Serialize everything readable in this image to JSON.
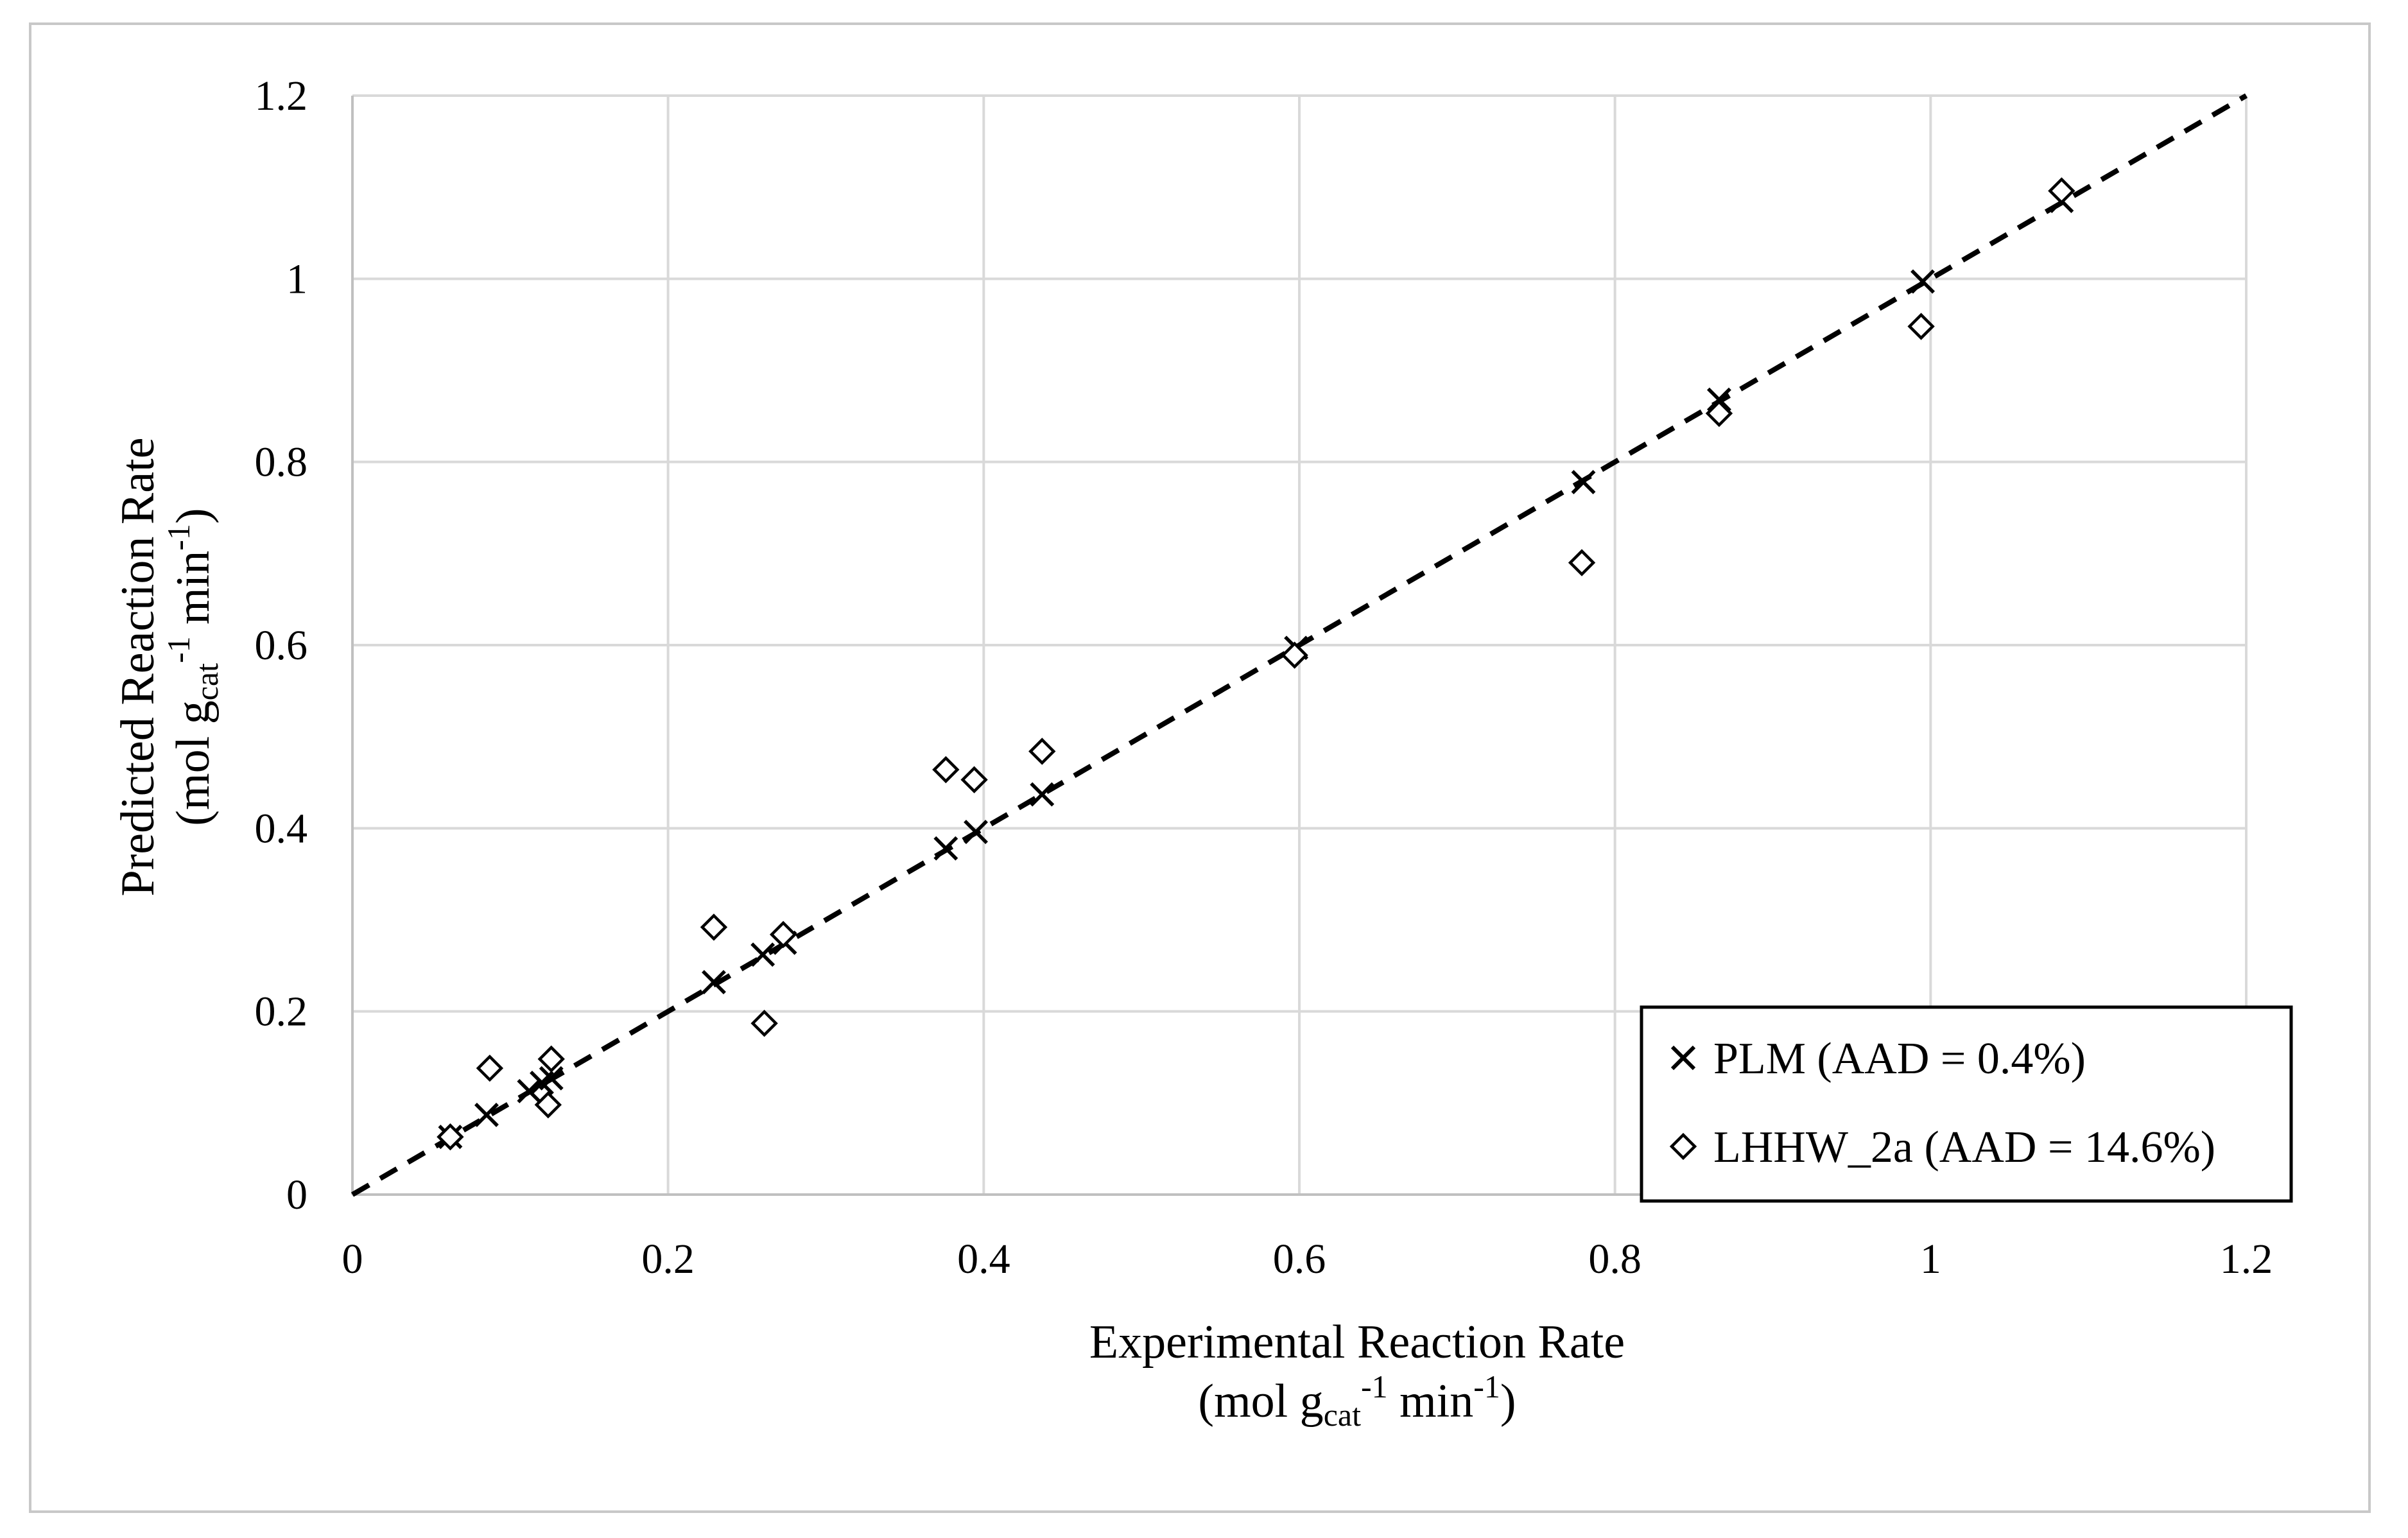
{
  "chart_data": {
    "type": "scatter",
    "title": "",
    "xlabel": {
      "line1": "Experimental Reaction Rate",
      "open": "(mol g",
      "sub": "cat",
      "sup1": "-1",
      "mid": " min",
      "sup2": "-1",
      "close": ")"
    },
    "ylabel": {
      "line1": "Predicted Reaction Rate",
      "open": "(mol g",
      "sub": "cat",
      "sup1": "-1",
      "mid": " min",
      "sup2": "-1",
      "close": ")"
    },
    "xlim": [
      0,
      1.2
    ],
    "ylim": [
      0,
      1.2
    ],
    "xticks": [
      0,
      0.2,
      0.4,
      0.6,
      0.8,
      1,
      1.2
    ],
    "yticks": [
      0,
      0.2,
      0.4,
      0.6,
      0.8,
      1,
      1.2
    ],
    "xtick_labels": [
      "0",
      "0.2",
      "0.4",
      "0.6",
      "0.8",
      "1",
      "1.2"
    ],
    "ytick_labels": [
      "0",
      "0.2",
      "0.4",
      "0.6",
      "0.8",
      "1",
      "1.2"
    ],
    "grid": true,
    "legend_position": "bottom-right",
    "series": [
      {
        "name": "PLM (AAD = 0.4%)",
        "marker": "x",
        "x": [
          0.062,
          0.085,
          0.112,
          0.12,
          0.126,
          0.229,
          0.26,
          0.274,
          0.376,
          0.395,
          0.437,
          0.598,
          0.78,
          0.866,
          0.995,
          1.083
        ],
        "y": [
          0.063,
          0.087,
          0.113,
          0.122,
          0.127,
          0.232,
          0.262,
          0.275,
          0.378,
          0.396,
          0.437,
          0.597,
          0.778,
          0.868,
          0.997,
          1.085
        ]
      },
      {
        "name": "LHHW_2a (AAD = 14.6%)",
        "marker": "diamond",
        "x": [
          0.062,
          0.087,
          0.124,
          0.126,
          0.229,
          0.261,
          0.273,
          0.376,
          0.394,
          0.437,
          0.597,
          0.779,
          0.866,
          0.994,
          1.083
        ],
        "y": [
          0.063,
          0.138,
          0.098,
          0.148,
          0.292,
          0.187,
          0.284,
          0.464,
          0.453,
          0.484,
          0.589,
          0.69,
          0.853,
          0.948,
          1.096
        ]
      },
      {
        "name": "parity line y = x",
        "style": "dashed",
        "x": [
          0,
          1.2
        ],
        "y": [
          0,
          1.2
        ]
      }
    ]
  },
  "colors": {
    "grid": "#d9d9d9",
    "axes": "#c0c0c0",
    "marker": "#000000",
    "line": "#000000"
  }
}
